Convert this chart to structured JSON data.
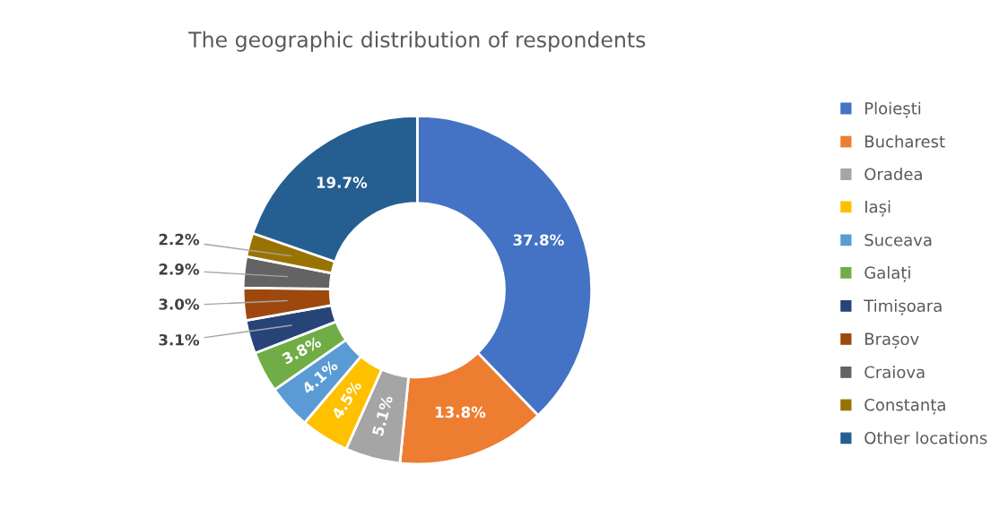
{
  "chart_data": {
    "type": "donut",
    "title": "The geographic distribution of respondents",
    "categories": [
      "Ploiești",
      "Bucharest",
      "Oradea",
      "Iași",
      "Suceava",
      "Galați",
      "Timișoara",
      "Brașov",
      "Craiova",
      "Constanța",
      "Other locations"
    ],
    "values": [
      37.8,
      13.8,
      5.1,
      4.5,
      4.1,
      3.8,
      3.1,
      3.0,
      2.9,
      2.2,
      19.7
    ],
    "value_labels": [
      "37.8%",
      "13.8%",
      "5.1%",
      "4.5%",
      "4.1%",
      "3.8%",
      "3.1%",
      "3.0%",
      "2.9%",
      "2.2%",
      "19.7%"
    ],
    "colors": [
      "#4472c4",
      "#ed7d31",
      "#a5a5a5",
      "#ffc000",
      "#5b9bd5",
      "#70ad47",
      "#264478",
      "#9e480e",
      "#636363",
      "#997300",
      "#255e91"
    ],
    "legend": "right"
  }
}
